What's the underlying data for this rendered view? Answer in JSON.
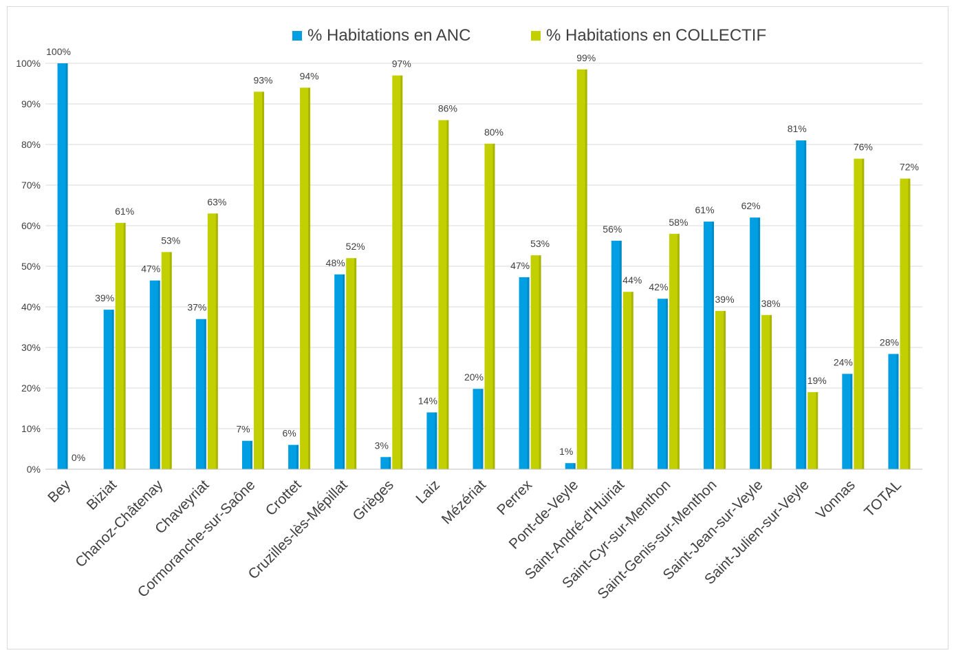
{
  "chart_data": {
    "type": "bar",
    "categories": [
      "Bey",
      "Biziat",
      "Chanoz-Châtenay",
      "Chaveyriat",
      "Cormoranche-sur-Saône",
      "Crottet",
      "Cruzilles-lès-Mépillat",
      "Grièges",
      "Laiz",
      "Mézériat",
      "Perrex",
      "Pont-de-Veyle",
      "Saint-André-d'Huiriat",
      "Saint-Cyr-sur-Menthon",
      "Saint-Genis-sur-Menthon",
      "Saint-Jean-sur-Veyle",
      "Saint-Julien-sur-Veyle",
      "Vonnas",
      "TOTAL"
    ],
    "series": [
      {
        "name": "% Habitations en ANC",
        "color": "#009FE3",
        "values": [
          100,
          39.3,
          46.5,
          37,
          7,
          6,
          48,
          3,
          14,
          19.8,
          47.3,
          1.5,
          56.3,
          42,
          61,
          62,
          81,
          23.5,
          28.4
        ],
        "labels": [
          "100%",
          "39%",
          "47%",
          "37%",
          "7%",
          "6%",
          "48%",
          "3%",
          "14%",
          "20%",
          "47%",
          "1%",
          "56%",
          "42%",
          "61%",
          "62%",
          "81%",
          "24%",
          "28%"
        ]
      },
      {
        "name": "% Habitations en COLLECTIF",
        "color": "#C2CF00",
        "values": [
          0,
          60.7,
          53.5,
          63,
          93,
          94,
          52,
          97,
          86,
          80.2,
          52.7,
          98.5,
          43.7,
          58,
          39,
          38,
          19,
          76.5,
          71.6
        ],
        "labels": [
          "0%",
          "61%",
          "53%",
          "63%",
          "93%",
          "94%",
          "52%",
          "97%",
          "86%",
          "80%",
          "53%",
          "99%",
          "44%",
          "58%",
          "39%",
          "38%",
          "19%",
          "76%",
          "72%"
        ]
      }
    ],
    "ylim": [
      0,
      100
    ],
    "yticks": [
      "0%",
      "10%",
      "20%",
      "30%",
      "40%",
      "50%",
      "60%",
      "70%",
      "80%",
      "90%",
      "100%"
    ],
    "grid": true,
    "legend_position": "top",
    "title": "",
    "xlabel": "",
    "ylabel": ""
  }
}
